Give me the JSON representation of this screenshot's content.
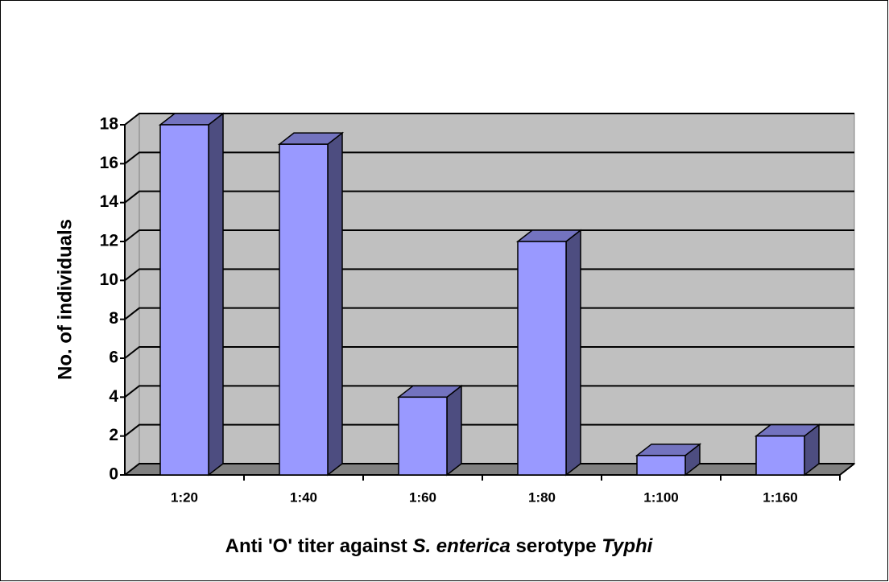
{
  "chart_data": {
    "type": "bar3d",
    "y_label": "No. of individuals",
    "x_label": [
      {
        "text": "Anti 'O' titer against ",
        "italic": false
      },
      {
        "text": "S. enterica",
        "italic": true
      },
      {
        "text": " serotype ",
        "italic": false
      },
      {
        "text": "Typhi",
        "italic": true
      }
    ],
    "categories": [
      "1:20",
      "1:40",
      "1:60",
      "1:80",
      "1:100",
      "1:160"
    ],
    "values": [
      18,
      17,
      4,
      12,
      1,
      2
    ],
    "color": "#9999ff",
    "ylim": [
      0,
      18
    ],
    "yticks": [
      0,
      2,
      4,
      6,
      8,
      10,
      12,
      14,
      16,
      18
    ],
    "grid": true
  }
}
